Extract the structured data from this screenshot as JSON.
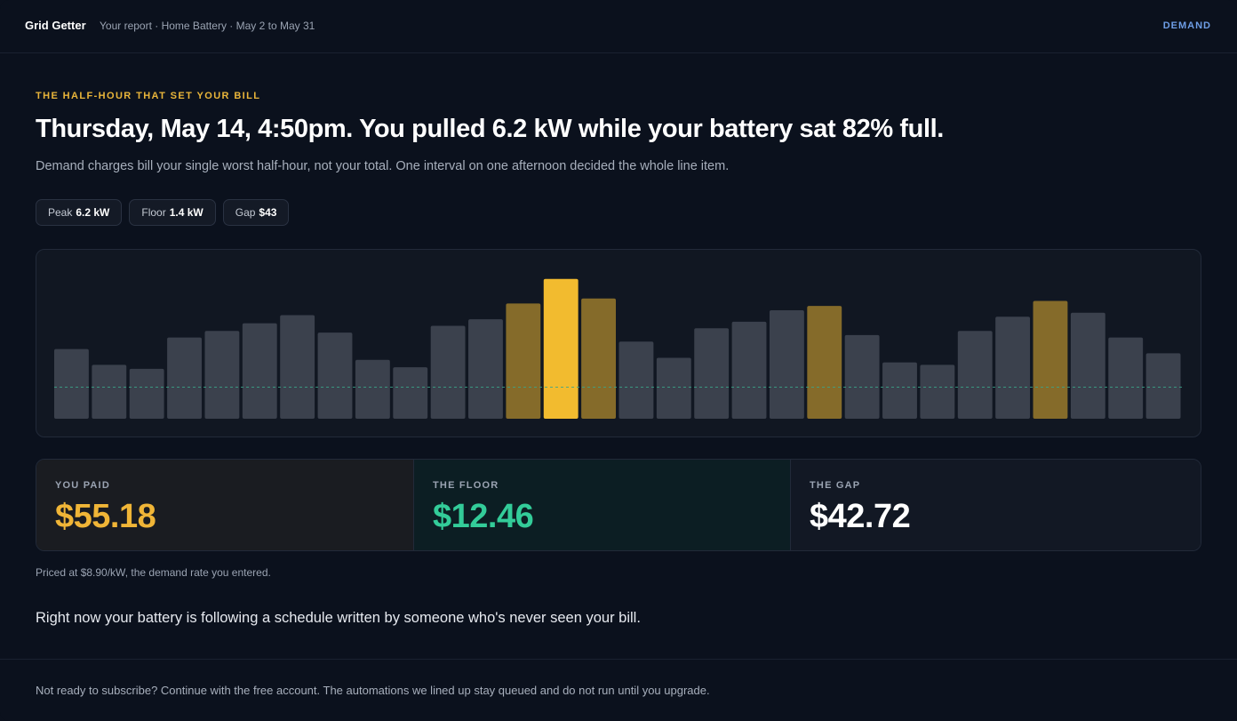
{
  "header": {
    "brand": "Grid Getter",
    "breadcrumb": "Your report · Home Battery · May 2 to May 31",
    "nav_link": "DEMAND"
  },
  "hero": {
    "eyebrow": "THE HALF-HOUR THAT SET YOUR BILL",
    "headline": "Thursday, May 14, 4:50pm. You pulled 6.2 kW while your battery sat 82% full.",
    "subtext": "Demand charges bill your single worst half-hour, not your total. One interval on one afternoon decided the whole line item."
  },
  "chips": [
    {
      "label": "Peak",
      "value": "6.2 kW"
    },
    {
      "label": "Floor",
      "value": "1.4 kW"
    },
    {
      "label": "Gap",
      "value": "$43"
    }
  ],
  "chart_data": {
    "type": "bar",
    "unit": "kW",
    "ylim": [
      0,
      6.7
    ],
    "floor_line": 1.4,
    "values": [
      3.09,
      2.39,
      2.21,
      3.6,
      3.89,
      4.23,
      4.59,
      3.82,
      2.61,
      2.28,
      4.12,
      4.41,
      5.11,
      6.2,
      5.33,
      3.42,
      2.7,
      4.01,
      4.3,
      4.81,
      5.0,
      3.71,
      2.5,
      2.39,
      3.89,
      4.52,
      5.22,
      4.7,
      3.6,
      2.9
    ],
    "highlight": [
      12,
      13,
      14,
      20,
      26
    ],
    "peak_index": 13,
    "colors": {
      "bar": "#3b414d",
      "highlight": "#856b2a",
      "peak": "#f2bb2f",
      "floor": "#3aa58a"
    }
  },
  "stats": {
    "paid": {
      "label": "YOU PAID",
      "value": "$55.18"
    },
    "floor": {
      "label": "THE FLOOR",
      "value": "$12.46"
    },
    "gap": {
      "label": "THE GAP",
      "value": "$42.72"
    }
  },
  "note": "Priced at $8.90/kW, the demand rate you entered.",
  "pitch": "Right now your battery is following a schedule written by someone who's never seen your bill.",
  "footer": "Not ready to subscribe? Continue with the free account. The automations we lined up stay queued and do not run until you upgrade."
}
